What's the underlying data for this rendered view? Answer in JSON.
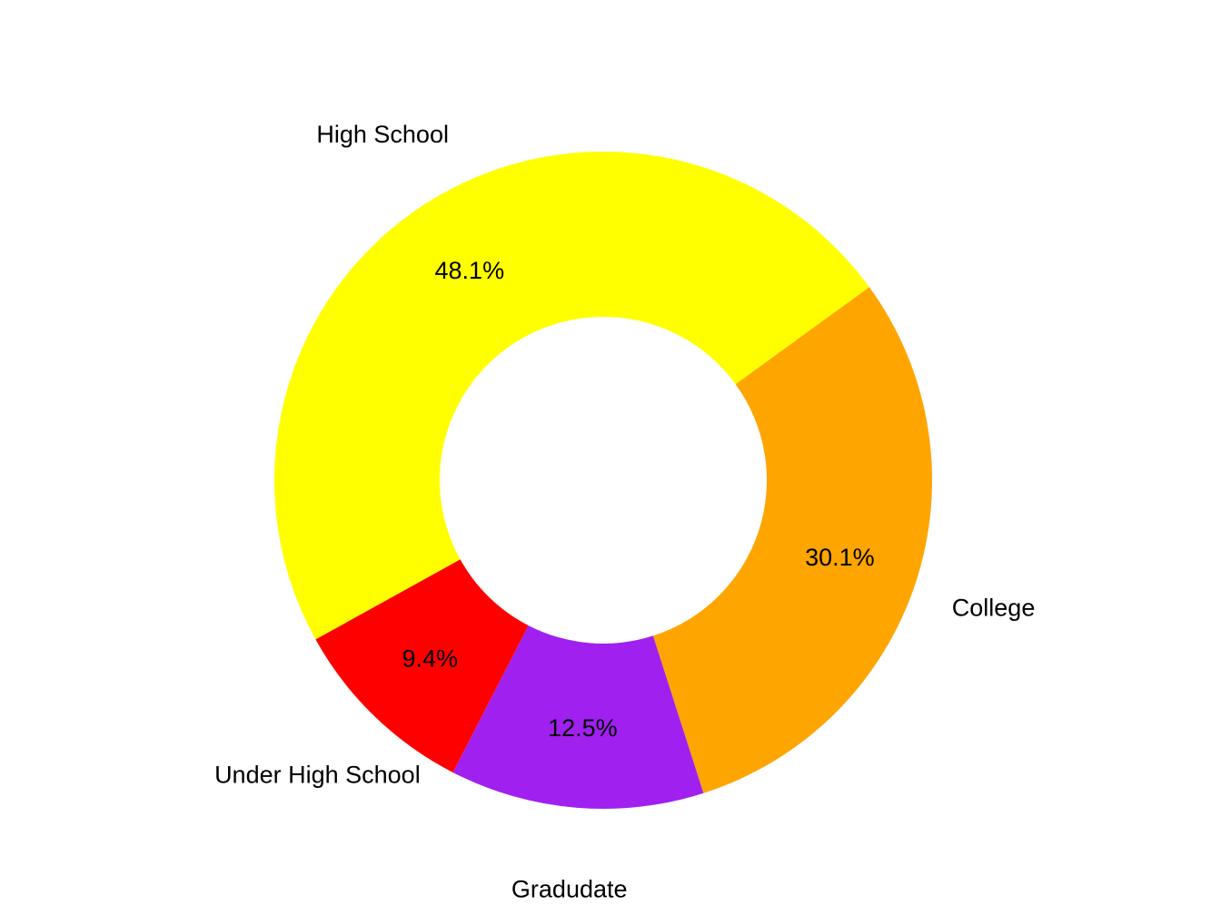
{
  "chart_data": {
    "type": "pie",
    "donut": true,
    "title": "",
    "slices": [
      {
        "label": "College",
        "value": 30.1,
        "value_label": "30.1%",
        "color": "#FFA500"
      },
      {
        "label": "Gradudate",
        "value": 12.5,
        "value_label": "12.5%",
        "color": "#A020F0"
      },
      {
        "label": "Under High School",
        "value": 9.4,
        "value_label": "9.4%",
        "color": "#FF0000"
      },
      {
        "label": "High School",
        "value": 48.1,
        "value_label": "48.1%",
        "color": "#FFFF00"
      }
    ],
    "legend": "none",
    "label_placement": "outside"
  }
}
